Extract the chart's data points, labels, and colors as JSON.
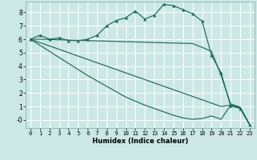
{
  "xlabel": "Humidex (Indice chaleur)",
  "bg_color": "#cce8e4",
  "grid_color": "#b0d8d4",
  "line_color": "#1a6b5a",
  "xlim": [
    -0.5,
    23.5
  ],
  "ylim": [
    -0.6,
    8.8
  ],
  "yticks": [
    0,
    1,
    2,
    3,
    4,
    5,
    6,
    7,
    8
  ],
  "ytick_labels": [
    "-0",
    "1",
    "2",
    "3",
    "4",
    "5",
    "6",
    "7",
    "8"
  ],
  "xticks": [
    0,
    1,
    2,
    3,
    4,
    5,
    6,
    7,
    8,
    9,
    10,
    11,
    12,
    13,
    14,
    15,
    16,
    17,
    18,
    19,
    20,
    21,
    22,
    23
  ],
  "main_line": [
    6.0,
    6.3,
    6.0,
    6.1,
    5.9,
    5.9,
    6.0,
    6.3,
    7.0,
    7.4,
    7.6,
    8.1,
    7.5,
    7.8,
    8.6,
    8.5,
    8.2,
    7.9,
    7.35,
    4.8,
    3.5,
    1.05,
    0.85,
    -0.35
  ],
  "ref_line1": [
    6.0,
    6.0,
    5.98,
    5.96,
    5.94,
    5.92,
    5.9,
    5.88,
    5.86,
    5.84,
    5.82,
    5.8,
    5.78,
    5.76,
    5.74,
    5.72,
    5.7,
    5.68,
    5.4,
    5.1,
    3.3,
    1.2,
    0.95,
    -0.35
  ],
  "ref_line2": [
    6.0,
    5.75,
    5.5,
    5.25,
    5.0,
    4.75,
    4.5,
    4.25,
    4.0,
    3.75,
    3.5,
    3.25,
    3.0,
    2.75,
    2.5,
    2.25,
    2.0,
    1.75,
    1.5,
    1.25,
    1.0,
    1.1,
    0.9,
    -0.35
  ],
  "ref_line3": [
    6.0,
    5.55,
    5.1,
    4.65,
    4.2,
    3.75,
    3.3,
    2.9,
    2.5,
    2.1,
    1.7,
    1.4,
    1.1,
    0.85,
    0.6,
    0.35,
    0.15,
    0.05,
    0.1,
    0.3,
    0.05,
    1.1,
    0.9,
    -0.35
  ]
}
